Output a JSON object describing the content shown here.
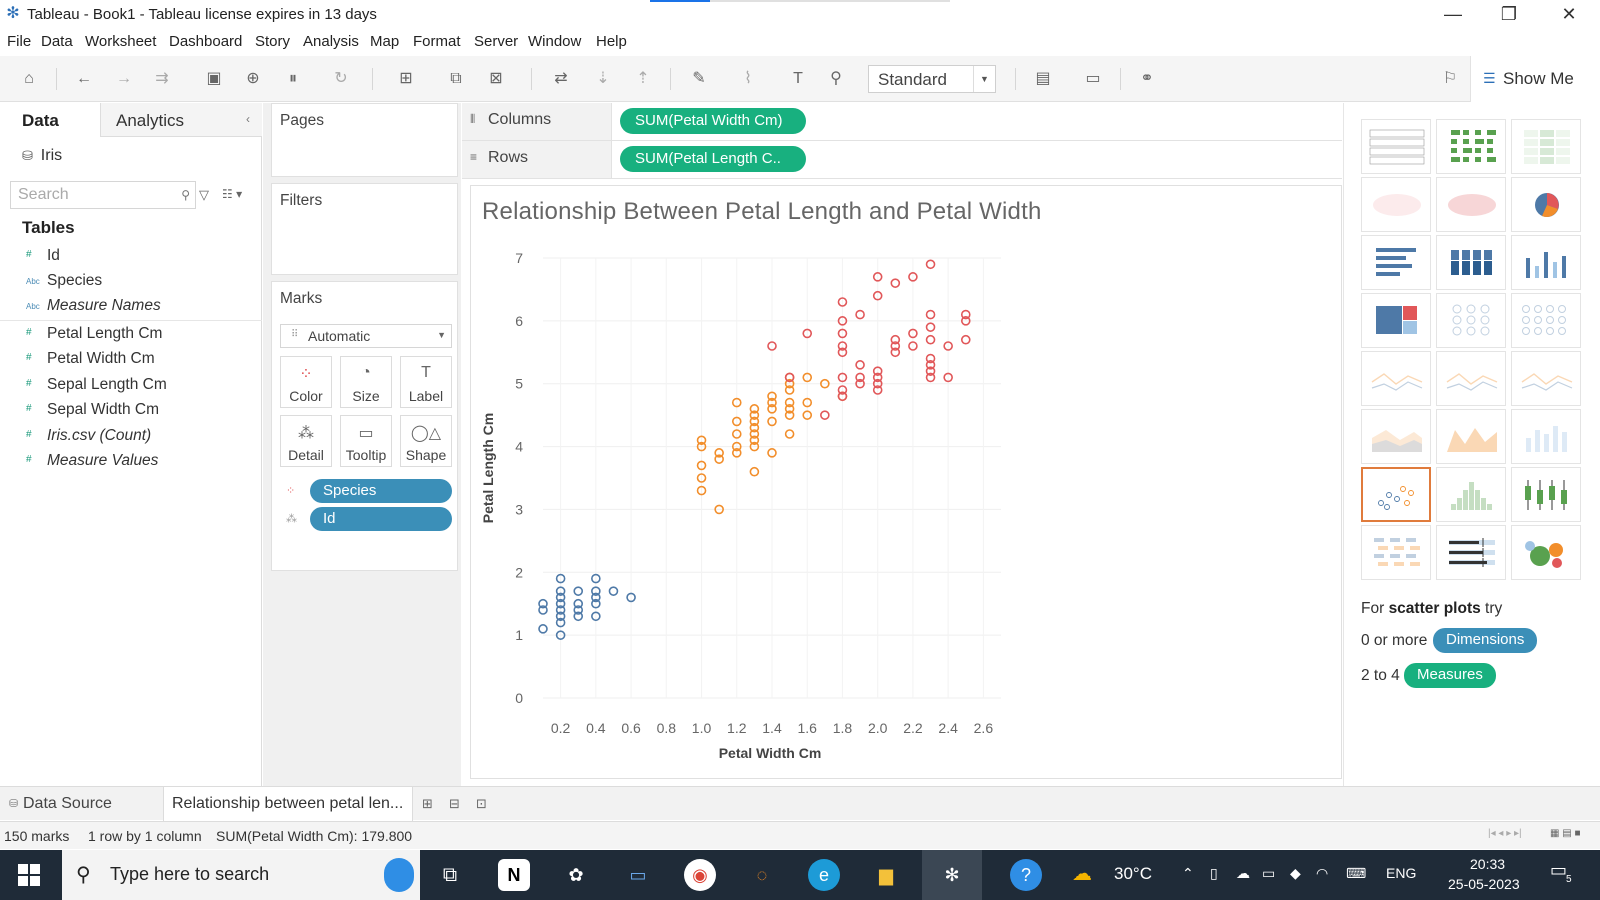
{
  "window": {
    "title": "Tableau - Book1 - Tableau license expires in 13 days"
  },
  "menu": [
    "File",
    "Data",
    "Worksheet",
    "Dashboard",
    "Story",
    "Analysis",
    "Map",
    "Format",
    "Server",
    "Window",
    "Help"
  ],
  "toolbar": {
    "fit_value": "Standard",
    "show_me_label": "Show Me"
  },
  "data_pane": {
    "tab_data": "Data",
    "tab_analytics": "Analytics",
    "datasource": "Iris",
    "search_placeholder": "Search",
    "tables_header": "Tables",
    "fields": [
      {
        "type": "#",
        "name": "Id",
        "kind": "measure-num"
      },
      {
        "type": "Abc",
        "name": "Species",
        "kind": "dim"
      },
      {
        "type": "Abc",
        "name": "Measure Names",
        "kind": "dim-italic"
      },
      {
        "type": "#",
        "name": "Petal Length Cm",
        "kind": "measure"
      },
      {
        "type": "#",
        "name": "Petal Width Cm",
        "kind": "measure"
      },
      {
        "type": "#",
        "name": "Sepal Length Cm",
        "kind": "measure"
      },
      {
        "type": "#",
        "name": "Sepal Width Cm",
        "kind": "measure"
      },
      {
        "type": "#",
        "name": "Iris.csv (Count)",
        "kind": "measure-italic"
      },
      {
        "type": "#",
        "name": "Measure Values",
        "kind": "measure-italic"
      }
    ]
  },
  "cards": {
    "pages": "Pages",
    "filters": "Filters",
    "marks": "Marks",
    "marks_type": "Automatic",
    "mark_buttons": [
      "Color",
      "Size",
      "Label",
      "Detail",
      "Tooltip",
      "Shape"
    ],
    "mark_pills": [
      "Species",
      "Id"
    ]
  },
  "shelves": {
    "columns_label": "Columns",
    "columns_pill": "SUM(Petal Width Cm)",
    "rows_label": "Rows",
    "rows_pill": "SUM(Petal Length C.."
  },
  "viz": {
    "title": "Relationship Between Petal Length and Petal Width"
  },
  "chart_data": {
    "type": "scatter",
    "title": "Relationship Between Petal Length and Petal Width",
    "xlabel": "Petal Width Cm",
    "ylabel": "Petal Length Cm",
    "xlim": [
      0.1,
      2.7
    ],
    "ylim": [
      0,
      7
    ],
    "x_ticks": [
      "0.2",
      "0.4",
      "0.6",
      "0.8",
      "1.0",
      "1.2",
      "1.4",
      "1.6",
      "1.8",
      "2.0",
      "2.2",
      "2.4",
      "2.6"
    ],
    "y_ticks": [
      "0",
      "1",
      "2",
      "3",
      "4",
      "5",
      "6",
      "7"
    ],
    "grid": true,
    "series": [
      {
        "color": "#4e79a7",
        "points": [
          [
            0.1,
            1.1
          ],
          [
            0.1,
            1.4
          ],
          [
            0.1,
            1.5
          ],
          [
            0.2,
            1.0
          ],
          [
            0.2,
            1.2
          ],
          [
            0.2,
            1.3
          ],
          [
            0.2,
            1.4
          ],
          [
            0.2,
            1.5
          ],
          [
            0.2,
            1.6
          ],
          [
            0.2,
            1.7
          ],
          [
            0.2,
            1.9
          ],
          [
            0.3,
            1.3
          ],
          [
            0.3,
            1.4
          ],
          [
            0.3,
            1.5
          ],
          [
            0.3,
            1.7
          ],
          [
            0.4,
            1.3
          ],
          [
            0.4,
            1.5
          ],
          [
            0.4,
            1.6
          ],
          [
            0.4,
            1.7
          ],
          [
            0.4,
            1.9
          ],
          [
            0.5,
            1.7
          ],
          [
            0.6,
            1.6
          ]
        ]
      },
      {
        "color": "#f28e2b",
        "points": [
          [
            1.0,
            3.3
          ],
          [
            1.0,
            3.5
          ],
          [
            1.0,
            3.7
          ],
          [
            1.0,
            4.0
          ],
          [
            1.0,
            4.1
          ],
          [
            1.1,
            3.0
          ],
          [
            1.1,
            3.8
          ],
          [
            1.1,
            3.9
          ],
          [
            1.2,
            3.9
          ],
          [
            1.2,
            4.0
          ],
          [
            1.2,
            4.2
          ],
          [
            1.2,
            4.4
          ],
          [
            1.2,
            4.7
          ],
          [
            1.3,
            3.6
          ],
          [
            1.3,
            4.0
          ],
          [
            1.3,
            4.1
          ],
          [
            1.3,
            4.2
          ],
          [
            1.3,
            4.3
          ],
          [
            1.3,
            4.4
          ],
          [
            1.3,
            4.5
          ],
          [
            1.3,
            4.6
          ],
          [
            1.4,
            3.9
          ],
          [
            1.4,
            4.4
          ],
          [
            1.4,
            4.6
          ],
          [
            1.4,
            4.7
          ],
          [
            1.4,
            4.8
          ],
          [
            1.5,
            4.2
          ],
          [
            1.5,
            4.5
          ],
          [
            1.5,
            4.6
          ],
          [
            1.5,
            4.7
          ],
          [
            1.5,
            4.9
          ],
          [
            1.5,
            5.0
          ],
          [
            1.5,
            5.1
          ],
          [
            1.6,
            4.5
          ],
          [
            1.6,
            4.7
          ],
          [
            1.6,
            5.1
          ],
          [
            1.7,
            5.0
          ],
          [
            1.8,
            4.8
          ]
        ]
      },
      {
        "color": "#e15759",
        "points": [
          [
            1.4,
            5.6
          ],
          [
            1.5,
            5.1
          ],
          [
            1.6,
            5.8
          ],
          [
            1.7,
            4.5
          ],
          [
            1.8,
            4.8
          ],
          [
            1.8,
            4.9
          ],
          [
            1.8,
            5.1
          ],
          [
            1.8,
            5.5
          ],
          [
            1.8,
            5.6
          ],
          [
            1.8,
            5.8
          ],
          [
            1.8,
            6.0
          ],
          [
            1.8,
            6.3
          ],
          [
            1.9,
            5.0
          ],
          [
            1.9,
            5.1
          ],
          [
            1.9,
            5.3
          ],
          [
            1.9,
            6.1
          ],
          [
            2.0,
            4.9
          ],
          [
            2.0,
            5.0
          ],
          [
            2.0,
            5.1
          ],
          [
            2.0,
            5.2
          ],
          [
            2.0,
            6.4
          ],
          [
            2.0,
            6.7
          ],
          [
            2.1,
            5.5
          ],
          [
            2.1,
            5.6
          ],
          [
            2.1,
            5.7
          ],
          [
            2.1,
            6.6
          ],
          [
            2.2,
            5.6
          ],
          [
            2.2,
            5.8
          ],
          [
            2.2,
            6.7
          ],
          [
            2.3,
            5.1
          ],
          [
            2.3,
            5.2
          ],
          [
            2.3,
            5.3
          ],
          [
            2.3,
            5.4
          ],
          [
            2.3,
            5.7
          ],
          [
            2.3,
            5.9
          ],
          [
            2.3,
            6.1
          ],
          [
            2.3,
            6.9
          ],
          [
            2.4,
            5.1
          ],
          [
            2.4,
            5.6
          ],
          [
            2.5,
            5.7
          ],
          [
            2.5,
            6.0
          ],
          [
            2.5,
            6.1
          ]
        ]
      }
    ]
  },
  "show_me": {
    "hint_prefix": "For",
    "hint_bold": "scatter plots",
    "hint_suffix": "try",
    "row1_text": "0 or more",
    "row1_pill": "Dimensions",
    "row2_text": "2 to 4",
    "row2_pill": "Measures",
    "dim_color": "#3b8fb8",
    "measure_color": "#18b07f"
  },
  "sheet_tabs": {
    "datasource": "Data Source",
    "sheet": "Relationship between petal len..."
  },
  "status": {
    "marks": "150 marks",
    "dims": "1 row by 1 column",
    "sum": "SUM(Petal Width Cm): 179.800"
  },
  "taskbar": {
    "search_placeholder": "Type here to search",
    "weather": "30°C",
    "lang": "ENG",
    "time": "20:33",
    "date": "25-05-2023",
    "notif_count": "5"
  }
}
